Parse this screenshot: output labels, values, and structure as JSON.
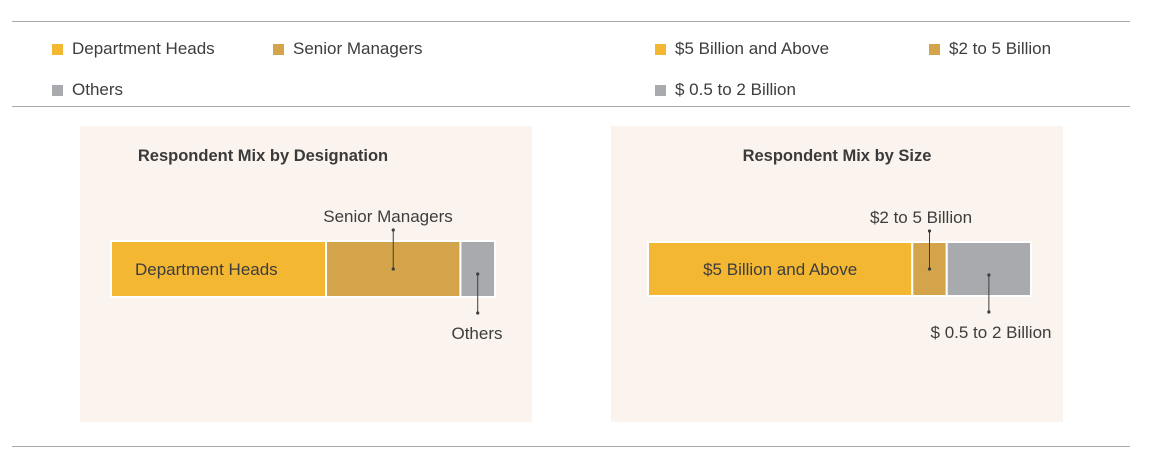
{
  "legend_left": [
    {
      "label": "Department Heads",
      "color": "#f3b731"
    },
    {
      "label": "Senior Managers",
      "color": "#d3a44a"
    },
    {
      "label": "Others",
      "color": "#a8aaad"
    }
  ],
  "legend_right": [
    {
      "label": "$5 Billion and Above",
      "color": "#f3b731"
    },
    {
      "label": "$2 to 5 Billion",
      "color": "#d3a44a"
    },
    {
      "label": "$ 0.5 to 2 Billion",
      "color": "#a8aaad"
    }
  ],
  "chart_data": [
    {
      "type": "bar",
      "orientation": "horizontal-stacked",
      "title": "Respondent Mix by Designation",
      "series": [
        {
          "name": "Department Heads",
          "value": 56,
          "color": "#f3b731"
        },
        {
          "name": "Senior Managers",
          "value": 35,
          "color": "#d3a44a"
        },
        {
          "name": "Others",
          "value": 9,
          "color": "#a8aaad"
        }
      ],
      "unit": "percent"
    },
    {
      "type": "bar",
      "orientation": "horizontal-stacked",
      "title": "Respondent Mix by Size",
      "series": [
        {
          "name": "$5 Billion and Above",
          "value": 69,
          "color": "#f3b731"
        },
        {
          "name": "$2 to 5 Billion",
          "value": 9,
          "color": "#d3a44a"
        },
        {
          "name": "$ 0.5 to 2 Billion",
          "value": 22,
          "color": "#a8aaad"
        }
      ],
      "unit": "percent"
    }
  ]
}
